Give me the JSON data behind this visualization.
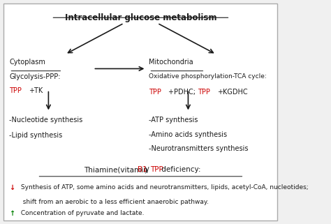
{
  "title": "Intracellular glucose metabolism",
  "background_color": "#f0f0f0",
  "panel_color": "#ffffff",
  "text_color_black": "#1a1a1a",
  "text_color_red": "#cc0000",
  "text_color_green": "#008000",
  "cytoplasm_label": "Cytoplasm",
  "cytoplasm_line1": "Glycolysis-PPP:",
  "cytoplasm_tpp": "TPP",
  "cytoplasm_tk": "+TK",
  "mito_label": "Mitochondria",
  "mito_line1": "Oxidative phosphorylation-TCA cycle:",
  "mito_tpp1": "TPP",
  "mito_mid1": "+PDHC; ",
  "mito_tpp2": "TPP",
  "mito_mid2": "+KGDHC",
  "cyto_products": [
    "-Nucleotide synthesis",
    "-Lipid synthesis"
  ],
  "mito_products": [
    "-ATP synthesis",
    "-Amino acids synthesis",
    "-Neurotransmitters synthesis"
  ],
  "deficiency_title_parts": [
    "Thiamine(vitamin ",
    "B1",
    ")/",
    "TPP",
    " deficiency:"
  ],
  "deficiency_colors": [
    "#1a1a1a",
    "#cc0000",
    "#1a1a1a",
    "#cc0000",
    "#1a1a1a"
  ],
  "bullet1_arrow": "↓",
  "bullet1_color": "#cc0000",
  "bullet1_text": " Synthesis of ATP, some amino acids and neurotransmitters, lipids, acetyl-CoA, nucleotides;",
  "bullet1_line2": "  shift from an aerobic to a less efficient anaerobic pathway.",
  "bullet2_arrow": "↑",
  "bullet2_color": "#008000",
  "bullet2_text": " Concentration of pyruvate and lactate."
}
